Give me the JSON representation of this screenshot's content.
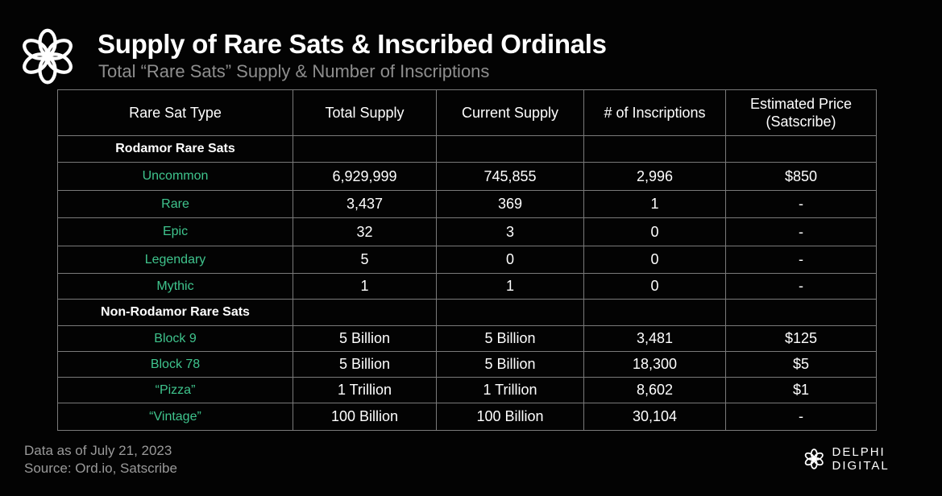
{
  "header": {
    "title": "Supply of Rare Sats & Inscribed Ordinals",
    "subtitle": "Total “Rare Sats” Supply & Number of Inscriptions"
  },
  "chart_data": {
    "type": "table",
    "columns": [
      "Rare Sat Type",
      "Total Supply",
      "Current Supply",
      "# of Inscriptions",
      "Estimated Price (Satscribe)"
    ],
    "rows": [
      {
        "section": true,
        "type": "Rodamor Rare Sats",
        "total": "",
        "current": "",
        "inscriptions": "",
        "price": ""
      },
      {
        "section": false,
        "type": "Uncommon",
        "total": "6,929,999",
        "current": "745,855",
        "inscriptions": "2,996",
        "price": "$850"
      },
      {
        "section": false,
        "type": "Rare",
        "total": "3,437",
        "current": "369",
        "inscriptions": "1",
        "price": "-"
      },
      {
        "section": false,
        "type": "Epic",
        "total": "32",
        "current": "3",
        "inscriptions": "0",
        "price": "-"
      },
      {
        "section": false,
        "type": "Legendary",
        "total": "5",
        "current": "0",
        "inscriptions": "0",
        "price": "-"
      },
      {
        "section": false,
        "type": "Mythic",
        "total": "1",
        "current": "1",
        "inscriptions": "0",
        "price": "-"
      },
      {
        "section": true,
        "type": "Non-Rodamor Rare Sats",
        "total": "",
        "current": "",
        "inscriptions": "",
        "price": ""
      },
      {
        "section": false,
        "type": "Block 9",
        "total": "5 Billion",
        "current": "5 Billion",
        "inscriptions": "3,481",
        "price": "$125"
      },
      {
        "section": false,
        "type": "Block 78",
        "total": "5 Billion",
        "current": "5 Billion",
        "inscriptions": "18,300",
        "price": "$5"
      },
      {
        "section": false,
        "type": "“Pizza”",
        "total": "1 Trillion",
        "current": "1 Trillion",
        "inscriptions": "8,602",
        "price": "$1"
      },
      {
        "section": false,
        "type": "“Vintage”",
        "total": "100 Billion",
        "current": "100 Billion",
        "inscriptions": "30,104",
        "price": "-"
      }
    ]
  },
  "footer": {
    "date_note": "Data as of July 21, 2023",
    "source": "Source: Ord.io, Satscribe"
  },
  "brand": {
    "name": "DELPHI DIGITAL",
    "icon": "delphi-logo-icon"
  },
  "colors": {
    "background": "#030303",
    "accent_green": "#3fc48d",
    "grid_line": "#7a7a7a",
    "muted_text": "#8e8e8e"
  }
}
